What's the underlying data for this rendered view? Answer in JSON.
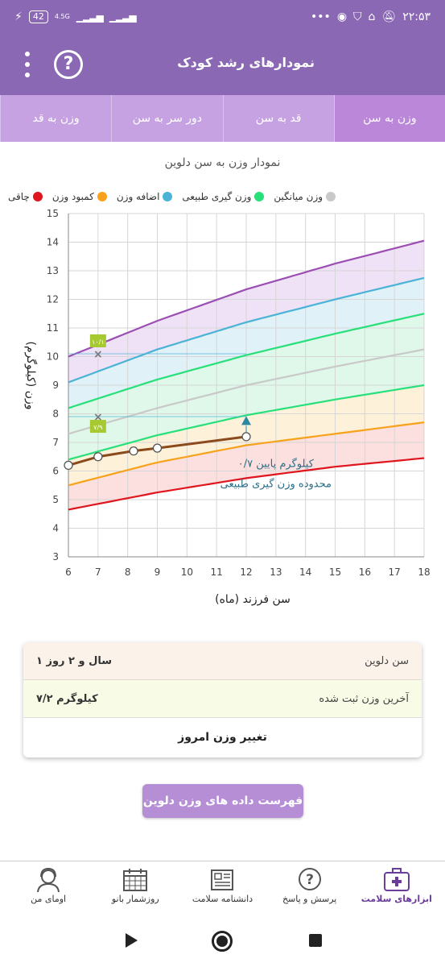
{
  "status_bar": {
    "battery": "42",
    "network": "4.5G",
    "time": "۲۲:۵۳",
    "dots": "•••"
  },
  "app_bar": {
    "title": "نمودارهای رشد کودک",
    "help_symbol": "?"
  },
  "tabs": [
    {
      "label": "وزن به سن",
      "active": true
    },
    {
      "label": "قد به سن",
      "active": false
    },
    {
      "label": "دور سر به سن",
      "active": false
    },
    {
      "label": "وزن به قد",
      "active": false
    }
  ],
  "chart_title": "نمودار وزن به سن دلوین",
  "legend": [
    {
      "label": "چاقی",
      "color": "#e0161e"
    },
    {
      "label": "کمبود وزن",
      "color": "#f7a21b"
    },
    {
      "label": "اضافه وزن",
      "color": "#4bb3d6"
    },
    {
      "label": "وزن گیری طبیعی",
      "color": "#27e07a"
    },
    {
      "label": "وزن میانگین",
      "color": "#c9c9c9"
    }
  ],
  "chart_data": {
    "type": "line",
    "xlabel": "سن فرزند (ماه)",
    "ylabel": "وزن (کیلوگرم)",
    "xlim": [
      6,
      18
    ],
    "ylim": [
      3,
      15
    ],
    "x_ticks": [
      "6",
      "7",
      "8",
      "9",
      "10",
      "11",
      "12",
      "13",
      "14",
      "15",
      "16",
      "17",
      "18"
    ],
    "y_ticks": [
      "3",
      "4",
      "5",
      "6",
      "7",
      "8",
      "9",
      "10",
      "11",
      "12",
      "13",
      "14",
      "15"
    ],
    "grid": true,
    "curves": [
      {
        "name": "top",
        "color": "#9b4fb3",
        "x": [
          6,
          9,
          12,
          15,
          18
        ],
        "y": [
          10.0,
          11.25,
          12.35,
          13.25,
          14.05
        ]
      },
      {
        "name": "overweight",
        "color": "#4bb3d6",
        "x": [
          6,
          9,
          12,
          15,
          18
        ],
        "y": [
          9.1,
          10.25,
          11.2,
          12.0,
          12.75
        ]
      },
      {
        "name": "normal-upper",
        "color": "#27e07a",
        "x": [
          6,
          9,
          12,
          15,
          18
        ],
        "y": [
          8.2,
          9.2,
          10.05,
          10.8,
          11.5
        ]
      },
      {
        "name": "average",
        "color": "#c9c9c9",
        "x": [
          6,
          9,
          12,
          15,
          18
        ],
        "y": [
          7.3,
          8.2,
          9.0,
          9.65,
          10.25
        ]
      },
      {
        "name": "normal-lower",
        "color": "#27e07a",
        "x": [
          6,
          9,
          12,
          15,
          18
        ],
        "y": [
          6.4,
          7.25,
          7.95,
          8.5,
          9.0
        ]
      },
      {
        "name": "underweight",
        "color": "#f7a21b",
        "x": [
          6,
          9,
          12,
          15,
          18
        ],
        "y": [
          5.5,
          6.3,
          6.9,
          7.3,
          7.7
        ]
      },
      {
        "name": "bottom",
        "color": "#e0161e",
        "x": [
          6,
          9,
          12,
          15,
          18
        ],
        "y": [
          4.65,
          5.25,
          5.75,
          6.15,
          6.45
        ]
      }
    ],
    "child": {
      "color": "#8b4a1b",
      "x": [
        6,
        7,
        8.2,
        9,
        12
      ],
      "y": [
        6.2,
        6.5,
        6.7,
        6.8,
        7.2
      ]
    },
    "target_marker": {
      "x": 12,
      "y": 7.75,
      "color": "#2b88a3"
    },
    "range_markers": [
      {
        "x": 7,
        "y": 10.1,
        "label": "۱۰/۱"
      },
      {
        "x": 7,
        "y": 7.9,
        "label": "۷/۹"
      }
    ],
    "annotation": [
      "۰/۷ کیلوگرم پایین",
      "محدوده وزن گیری طبیعی"
    ]
  },
  "info_card": {
    "age_label": "سن دلوین",
    "age_value": "۱ سال و ۲ روز",
    "weight_label": "آخرین وزن ثبت شده",
    "weight_value": "۷/۲ کیلوگرم",
    "change_label": "تغییر وزن امروز"
  },
  "list_button": "فهرست داده های وزن دلوین",
  "bottom_nav": [
    {
      "label": "ابزارهای سلامت",
      "icon": "medical-kit-icon",
      "active": true
    },
    {
      "label": "پرسش و پاسخ",
      "icon": "question-icon",
      "active": false
    },
    {
      "label": "دانشنامه سلامت",
      "icon": "newspaper-icon",
      "active": false
    },
    {
      "label": "روزشمار بانو",
      "icon": "calendar-icon",
      "active": false
    },
    {
      "label": "اومای من",
      "icon": "woman-avatar-icon",
      "active": false
    }
  ]
}
